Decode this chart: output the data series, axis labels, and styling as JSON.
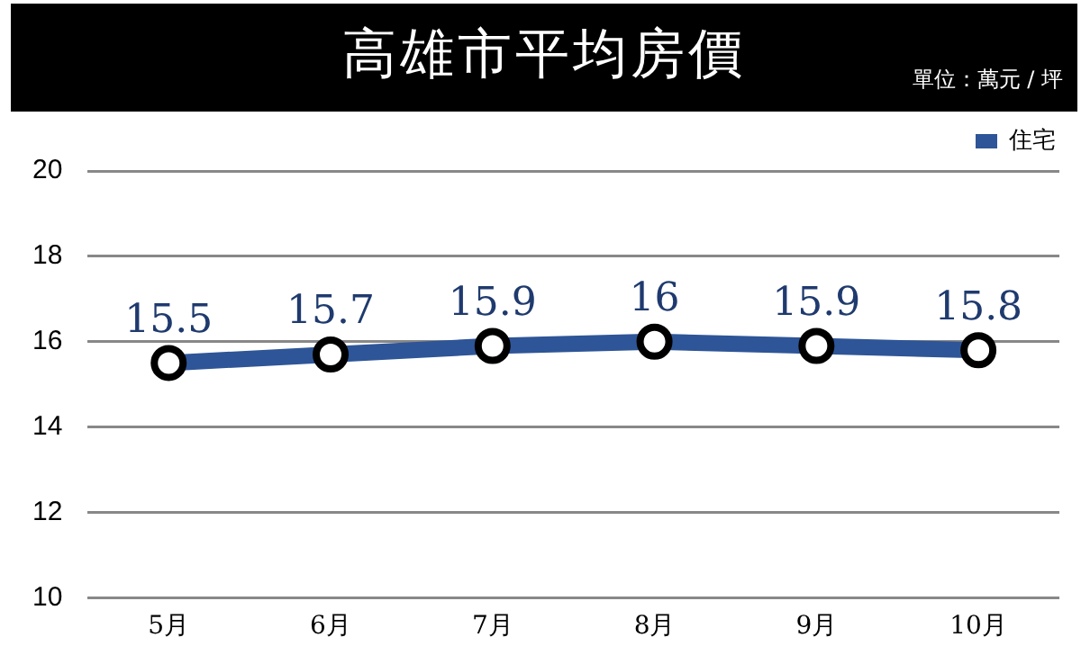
{
  "chart_data": {
    "type": "line",
    "title": "高雄市平均房價",
    "annotations": [
      "單位：萬元 / 坪"
    ],
    "categories": [
      "5月",
      "6月",
      "7月",
      "8月",
      "9月",
      "10月"
    ],
    "series": [
      {
        "name": "住宅",
        "color": "#2e5597",
        "values": [
          15.5,
          15.7,
          15.9,
          16,
          15.9,
          15.8
        ]
      }
    ],
    "ylim": [
      10,
      20
    ],
    "yticks": [
      10,
      12,
      14,
      16,
      18,
      20
    ],
    "grid": "y",
    "legend": "top right",
    "marker": "circle",
    "line_style": "solid",
    "data_labels": true
  }
}
